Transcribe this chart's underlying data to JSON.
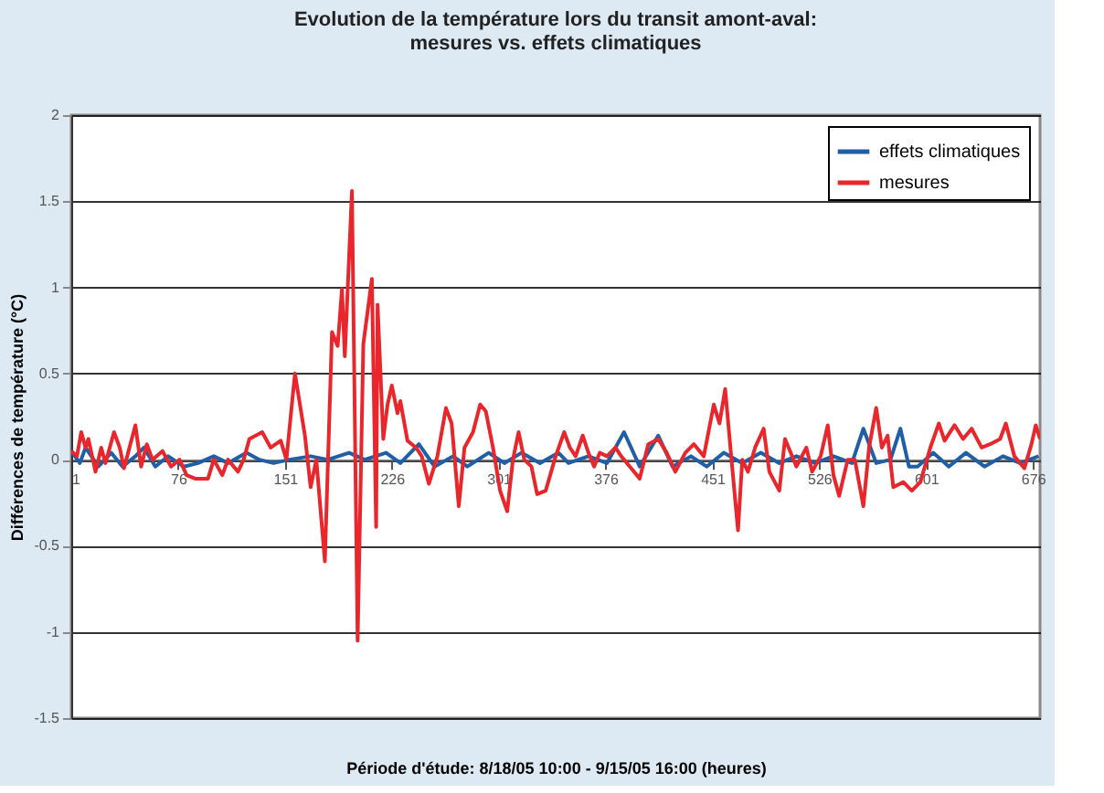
{
  "chart_data": {
    "type": "line",
    "title": "Evolution de la température lors du transit amont-aval:\nmesures vs. effets climatiques",
    "xlabel": "Période d'étude: 8/18/05 10:00 -  9/15/05 16:00 (heures)",
    "ylabel": "Différences de température (°C)",
    "xlim": [
      1,
      681
    ],
    "xticks": [
      1,
      76,
      151,
      226,
      301,
      376,
      451,
      526,
      601,
      676
    ],
    "ylim": [
      -1.5,
      2
    ],
    "yticks": [
      -1.5,
      -1,
      -0.5,
      0,
      0.5,
      1,
      1.5,
      2
    ],
    "grid": "y",
    "legend": "top right",
    "line_style": "solid",
    "marker": "none",
    "series": [
      {
        "name": "effets climatiques",
        "color": "#1f5fa8",
        "x": [
          1,
          7,
          11,
          20,
          29,
          37,
          46,
          52,
          60,
          69,
          80,
          90,
          101,
          111,
          124,
          133,
          143,
          154,
          169,
          181,
          196,
          207,
          222,
          232,
          245,
          256,
          269,
          279,
          294,
          305,
          317,
          330,
          343,
          350,
          364,
          377,
          389,
          400,
          413,
          423,
          436,
          447,
          459,
          472,
          485,
          498,
          510,
          523,
          536,
          549,
          557,
          566,
          576,
          583,
          589,
          595,
          606,
          617,
          629,
          642,
          655,
          667,
          680
        ],
        "values": [
          0.05,
          -0.02,
          0.07,
          -0.04,
          0.04,
          -0.04,
          0.02,
          0.07,
          -0.04,
          0.02,
          -0.04,
          -0.02,
          0.02,
          -0.02,
          0.04,
          0,
          -0.02,
          0,
          0.02,
          0,
          0.04,
          0,
          0.04,
          -0.02,
          0.09,
          -0.04,
          0.02,
          -0.04,
          0.04,
          -0.02,
          0.04,
          -0.02,
          0.04,
          -0.02,
          0.02,
          -0.02,
          0.16,
          -0.04,
          0.14,
          -0.04,
          0.02,
          -0.04,
          0.04,
          -0.02,
          0.04,
          -0.02,
          0.02,
          -0.02,
          0.02,
          -0.02,
          0.18,
          -0.02,
          0,
          0.18,
          -0.04,
          -0.04,
          0.04,
          -0.04,
          0.04,
          -0.04,
          0.02,
          -0.02,
          0.02
        ]
      },
      {
        "name": "mesures",
        "color": "#e8262b",
        "x": [
          1,
          5,
          8,
          11,
          13,
          18,
          22,
          25,
          31,
          35,
          38,
          46,
          50,
          54,
          58,
          65,
          71,
          77,
          82,
          88,
          97,
          101,
          107,
          111,
          118,
          122,
          126,
          135,
          141,
          148,
          152,
          158,
          165,
          169,
          173,
          179,
          184,
          188,
          191,
          193,
          198,
          202,
          206,
          212,
          215,
          216,
          220,
          223,
          226,
          230,
          232,
          237,
          243,
          247,
          252,
          258,
          264,
          268,
          273,
          277,
          283,
          288,
          292,
          297,
          302,
          307,
          311,
          315,
          319,
          324,
          328,
          334,
          341,
          347,
          351,
          355,
          360,
          364,
          368,
          372,
          377,
          383,
          387,
          394,
          400,
          406,
          413,
          419,
          425,
          432,
          438,
          445,
          452,
          456,
          460,
          464,
          469,
          472,
          476,
          481,
          487,
          491,
          498,
          502,
          506,
          510,
          517,
          521,
          527,
          532,
          536,
          540,
          546,
          551,
          557,
          561,
          566,
          570,
          574,
          578,
          585,
          591,
          597,
          604,
          610,
          614,
          621,
          627,
          633,
          640,
          646,
          653,
          657,
          663,
          670,
          675,
          678,
          681
        ],
        "values": [
          0.05,
          0.02,
          0.16,
          0.07,
          0.12,
          -0.07,
          0.07,
          -0.02,
          0.16,
          0.07,
          -0.05,
          0.2,
          -0.04,
          0.09,
          0,
          0.05,
          -0.04,
          0,
          -0.09,
          -0.11,
          -0.11,
          0,
          -0.09,
          0,
          -0.07,
          0,
          0.12,
          0.16,
          0.07,
          0.11,
          0,
          0.5,
          0.14,
          -0.16,
          0,
          -0.59,
          0.74,
          0.66,
          0.99,
          0.6,
          1.56,
          -1.05,
          0.67,
          1.05,
          -0.39,
          0.9,
          0.12,
          0.32,
          0.43,
          0.27,
          0.34,
          0.11,
          0.07,
          0.02,
          -0.14,
          0.02,
          0.3,
          0.21,
          -0.27,
          0.07,
          0.16,
          0.32,
          0.28,
          0.07,
          -0.18,
          -0.3,
          0,
          0.16,
          0,
          -0.04,
          -0.2,
          -0.18,
          0.02,
          0.16,
          0.07,
          0.02,
          0.14,
          0.04,
          -0.04,
          0.04,
          0.02,
          0.07,
          0.02,
          -0.05,
          -0.11,
          0.09,
          0.12,
          0.04,
          -0.07,
          0.04,
          0.09,
          0.02,
          0.32,
          0.21,
          0.41,
          0.04,
          -0.41,
          0,
          -0.07,
          0.07,
          0.18,
          -0.07,
          -0.18,
          0.12,
          0.04,
          -0.04,
          0.07,
          -0.07,
          0.02,
          0.2,
          -0.09,
          -0.21,
          0,
          0,
          -0.27,
          0.07,
          0.3,
          0.07,
          0.14,
          -0.16,
          -0.13,
          -0.18,
          -0.13,
          0.07,
          0.21,
          0.11,
          0.2,
          0.12,
          0.18,
          0.07,
          0.09,
          0.12,
          0.21,
          0.02,
          -0.05,
          0.09,
          0.2,
          0.12
        ]
      }
    ]
  }
}
